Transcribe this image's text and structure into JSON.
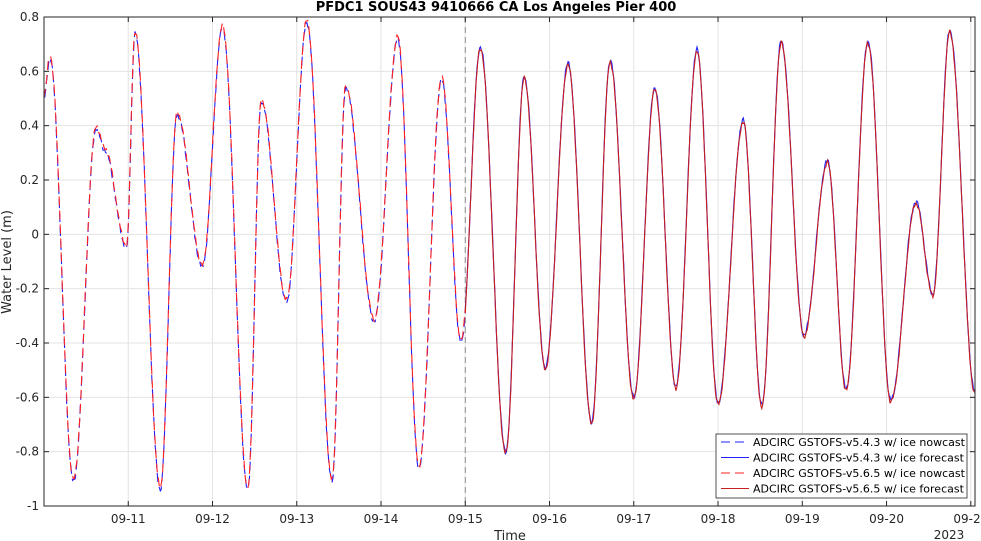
{
  "chart_data": {
    "type": "line",
    "title": "PFDC1 SOUS43 9410666 CA Los Angeles Pier 400",
    "xlabel": "Time",
    "ylabel": "Water Level (m)",
    "ylim": [
      -1,
      0.8
    ],
    "yticks": [
      -1,
      -0.8,
      -0.6,
      -0.4,
      -0.2,
      0,
      0.2,
      0.4,
      0.6,
      0.8
    ],
    "ytick_labels": [
      "-1",
      "-0.8",
      "-0.6",
      "-0.4",
      "-0.2",
      "0",
      "0.2",
      "0.4",
      "0.6",
      "0.8"
    ],
    "xlim_days": [
      10.0,
      21.05
    ],
    "xticks_days": [
      11,
      12,
      13,
      14,
      15,
      16,
      17,
      18,
      19,
      20,
      21
    ],
    "xtick_labels": [
      "09-11",
      "09-12",
      "09-13",
      "09-14",
      "09-15",
      "09-16",
      "09-17",
      "09-18",
      "09-19",
      "09-20",
      "09-21"
    ],
    "x_year_label": "2023",
    "grid": true,
    "nowcast_forecast_divider_day": 15,
    "legend_position": "bottom-right",
    "extrema": {
      "x_days": [
        10.0,
        10.07,
        10.35,
        10.62,
        10.72,
        10.98,
        11.08,
        11.38,
        11.58,
        11.88,
        12.12,
        12.42,
        12.58,
        12.88,
        13.12,
        13.42,
        13.58,
        13.92,
        14.2,
        14.45,
        14.72,
        14.95,
        15.18,
        15.48,
        15.7,
        15.95,
        16.22,
        16.5,
        16.72,
        17.0,
        17.25,
        17.5,
        17.75,
        18.0,
        18.3,
        18.52,
        18.75,
        19.02,
        19.3,
        19.52,
        19.78,
        20.05,
        20.35,
        20.55,
        20.75,
        21.05
      ],
      "y": [
        0.5,
        0.65,
        -0.91,
        0.39,
        0.31,
        -0.05,
        0.74,
        -0.94,
        0.44,
        -0.12,
        0.76,
        -0.94,
        0.49,
        -0.25,
        0.78,
        -0.91,
        0.54,
        -0.32,
        0.72,
        -0.86,
        0.57,
        -0.4,
        0.69,
        -0.8,
        0.58,
        -0.49,
        0.63,
        -0.69,
        0.64,
        -0.6,
        0.54,
        -0.56,
        0.68,
        -0.62,
        0.42,
        -0.63,
        0.71,
        -0.37,
        0.27,
        -0.57,
        0.71,
        -0.61,
        0.12,
        -0.22,
        0.75,
        -0.58
      ]
    },
    "series": [
      {
        "name": "ADCIRC GSTOFS-v5.4.3 w/ ice nowcast",
        "color": "#1f1fff",
        "dash": "dashed",
        "phase": "nowcast",
        "offset": 0.0
      },
      {
        "name": "ADCIRC GSTOFS-v5.4.3 w/ ice forecast",
        "color": "#1f1fff",
        "dash": "solid",
        "phase": "forecast",
        "offset": 0.0
      },
      {
        "name": "ADCIRC GSTOFS-v5.6.5 w/ ice nowcast",
        "color": "#ff2020",
        "dash": "dashed",
        "phase": "nowcast",
        "offset": 0.008
      },
      {
        "name": "ADCIRC GSTOFS-v5.6.5 w/ ice forecast",
        "color": "#c81e1e",
        "dash": "solid",
        "phase": "forecast",
        "offset": -0.006
      }
    ]
  }
}
